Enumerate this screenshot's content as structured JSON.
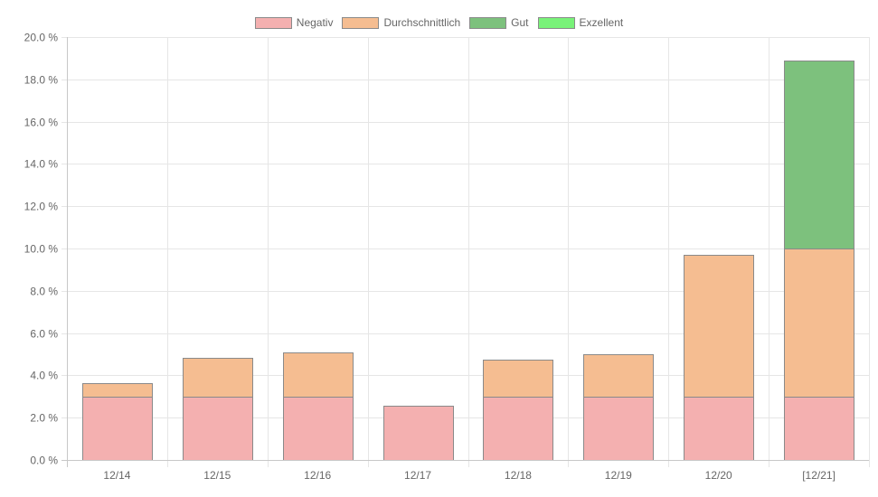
{
  "chart_data": {
    "type": "bar",
    "stacked": true,
    "categories": [
      "12/14",
      "12/15",
      "12/16",
      "12/17",
      "12/18",
      "12/19",
      "12/20",
      "[12/21]"
    ],
    "series": [
      {
        "name": "Negativ",
        "color": "#f4b0b0",
        "values": [
          3.0,
          3.0,
          3.0,
          2.55,
          3.0,
          3.0,
          3.0,
          3.0
        ]
      },
      {
        "name": "Durchschnittlich",
        "color": "#f5bd91",
        "values": [
          0.65,
          1.85,
          2.1,
          0,
          1.75,
          2.0,
          6.7,
          7.0
        ]
      },
      {
        "name": "Gut",
        "color": "#7dc17d",
        "values": [
          0,
          0,
          0,
          0,
          0,
          0,
          0,
          8.9
        ]
      },
      {
        "name": "Exzellent",
        "color": "#79f279",
        "values": [
          0,
          0,
          0,
          0,
          0,
          0,
          0,
          0
        ]
      }
    ],
    "yaxis": {
      "min": 0,
      "max": 20,
      "ticks": [
        0,
        2,
        4,
        6,
        8,
        10,
        12,
        14,
        16,
        18,
        20
      ],
      "tick_labels": [
        "0.0 %",
        "2.0 %",
        "4.0 %",
        "6.0 %",
        "8.0 %",
        "10.0 %",
        "12.0 %",
        "14.0 %",
        "16.0 %",
        "18.0 %",
        "20.0 %"
      ]
    },
    "grid": true,
    "legend_position": "top-center",
    "title": "",
    "xlabel": "",
    "ylabel": ""
  }
}
